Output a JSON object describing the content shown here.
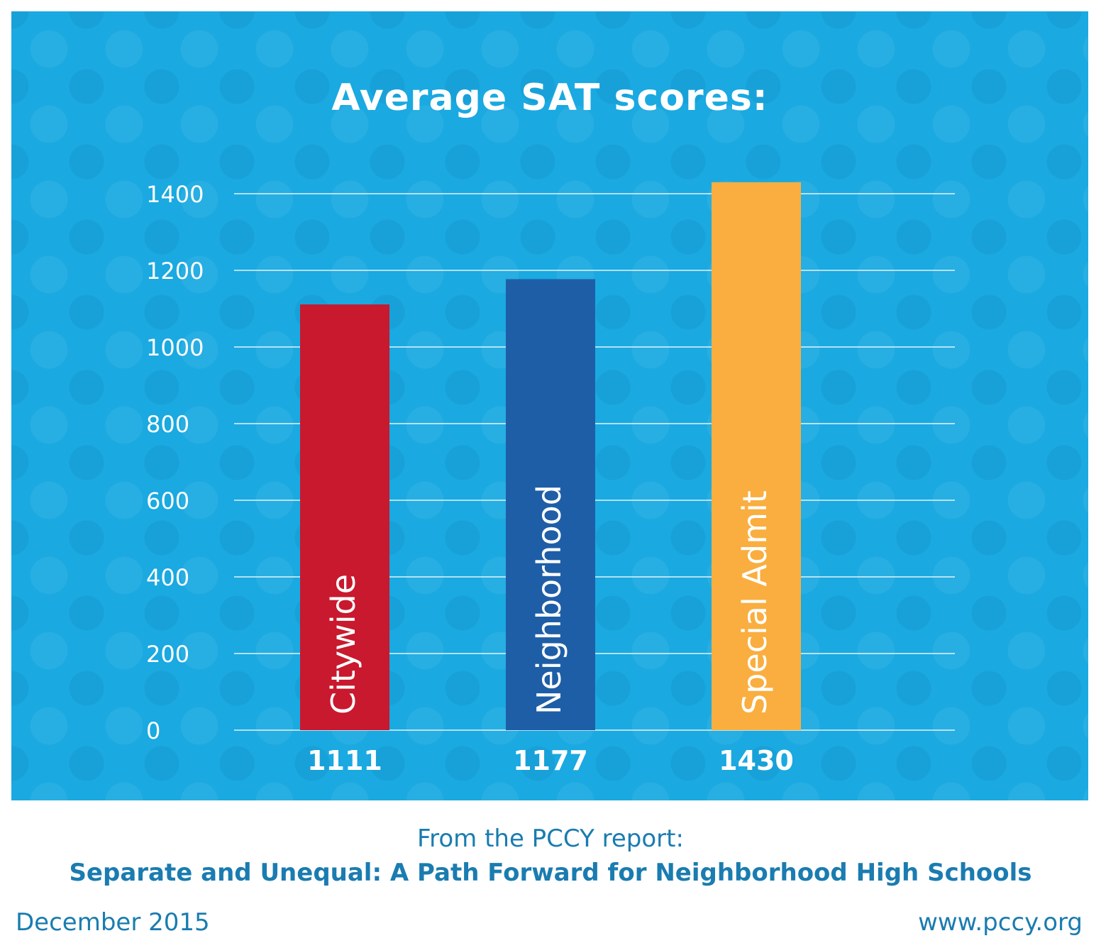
{
  "chart_data": {
    "type": "bar",
    "title": "Average SAT scores:",
    "categories": [
      "Citywide",
      "Neighborhood",
      "Special Admit"
    ],
    "values": [
      1111,
      1177,
      1430
    ],
    "value_labels": [
      "1111",
      "1177",
      "1430"
    ],
    "colors": [
      "#c8192e",
      "#1e5ea6",
      "#f9ae3f"
    ],
    "yticks": [
      "0",
      "200",
      "400",
      "600",
      "800",
      "1000",
      "1200",
      "1400"
    ],
    "ylim": [
      0,
      1400
    ],
    "grid": true,
    "xlabel": "",
    "ylabel": ""
  },
  "caption": {
    "intro": "From the PCCY report:",
    "report_title": "Separate and Unequal: A Path Forward for Neighborhood High Schools"
  },
  "footer": {
    "date": "December 2015",
    "url": "www.pccy.org"
  },
  "colors": {
    "panel_background": "#1aa9e0",
    "caption_text": "#1a7cb0"
  }
}
